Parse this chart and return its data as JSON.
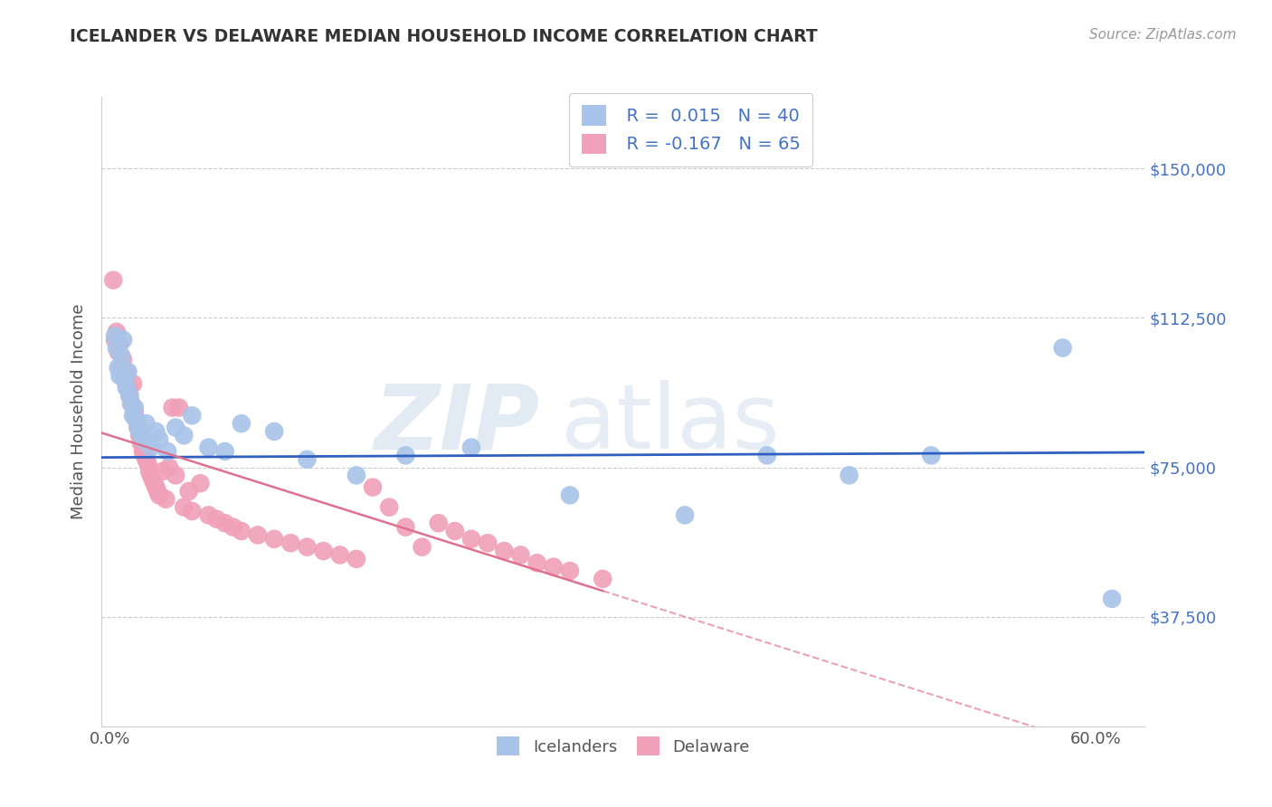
{
  "title": "ICELANDER VS DELAWARE MEDIAN HOUSEHOLD INCOME CORRELATION CHART",
  "source": "Source: ZipAtlas.com",
  "ylabel": "Median Household Income",
  "ytick_labels": [
    "$37,500",
    "$75,000",
    "$112,500",
    "$150,000"
  ],
  "ytick_values": [
    37500,
    75000,
    112500,
    150000
  ],
  "ymin": 10000,
  "ymax": 168000,
  "xmin": -0.005,
  "xmax": 0.63,
  "icelander_color": "#a8c4e8",
  "delaware_color": "#f0a0b8",
  "icelander_line_color": "#3060c0",
  "delaware_line_color": "#e07090",
  "icelander_x": [
    0.003,
    0.004,
    0.005,
    0.006,
    0.007,
    0.008,
    0.009,
    0.01,
    0.011,
    0.012,
    0.013,
    0.014,
    0.015,
    0.016,
    0.017,
    0.018,
    0.02,
    0.022,
    0.025,
    0.028,
    0.03,
    0.035,
    0.04,
    0.045,
    0.05,
    0.06,
    0.07,
    0.08,
    0.1,
    0.12,
    0.15,
    0.18,
    0.22,
    0.28,
    0.35,
    0.4,
    0.45,
    0.5,
    0.58,
    0.61
  ],
  "icelander_y": [
    108000,
    105000,
    100000,
    98000,
    103000,
    107000,
    97000,
    95000,
    99000,
    93000,
    91000,
    88000,
    90000,
    87000,
    85000,
    84000,
    82000,
    86000,
    80000,
    84000,
    82000,
    79000,
    85000,
    83000,
    88000,
    80000,
    79000,
    86000,
    84000,
    77000,
    73000,
    78000,
    80000,
    68000,
    63000,
    78000,
    73000,
    78000,
    105000,
    42000
  ],
  "delaware_x": [
    0.002,
    0.003,
    0.004,
    0.005,
    0.006,
    0.007,
    0.008,
    0.009,
    0.01,
    0.011,
    0.012,
    0.013,
    0.014,
    0.015,
    0.016,
    0.017,
    0.018,
    0.019,
    0.02,
    0.021,
    0.022,
    0.023,
    0.024,
    0.025,
    0.026,
    0.027,
    0.028,
    0.029,
    0.03,
    0.032,
    0.034,
    0.036,
    0.038,
    0.04,
    0.042,
    0.045,
    0.048,
    0.05,
    0.055,
    0.06,
    0.065,
    0.07,
    0.075,
    0.08,
    0.09,
    0.1,
    0.11,
    0.12,
    0.13,
    0.14,
    0.15,
    0.16,
    0.17,
    0.18,
    0.19,
    0.2,
    0.21,
    0.22,
    0.23,
    0.24,
    0.25,
    0.26,
    0.27,
    0.28,
    0.3
  ],
  "delaware_y": [
    122000,
    107000,
    109000,
    104000,
    106000,
    100000,
    102000,
    97000,
    99000,
    95000,
    93000,
    91000,
    96000,
    89000,
    87000,
    85000,
    83000,
    81000,
    79000,
    78000,
    77000,
    76000,
    74000,
    73000,
    72000,
    71000,
    70000,
    69000,
    68000,
    74000,
    67000,
    75000,
    90000,
    73000,
    90000,
    65000,
    69000,
    64000,
    71000,
    63000,
    62000,
    61000,
    60000,
    59000,
    58000,
    57000,
    56000,
    55000,
    54000,
    53000,
    52000,
    70000,
    65000,
    60000,
    55000,
    61000,
    59000,
    57000,
    56000,
    54000,
    53000,
    51000,
    50000,
    49000,
    47000
  ]
}
